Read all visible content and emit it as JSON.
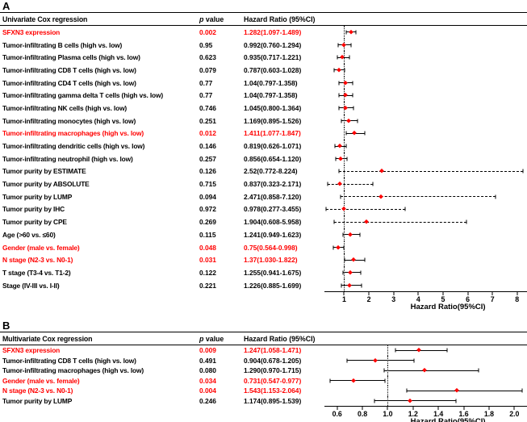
{
  "colors": {
    "significant_text": "#ff0000",
    "normal_text": "#000000",
    "marker": "#ff0000",
    "line": "#000000",
    "background": "#ffffff"
  },
  "chart_data": {
    "type": "forest",
    "panels": [
      {
        "panel_label": "A",
        "header": {
          "model": "Univariate Cox regression",
          "p_italic": "p",
          "p_rest": " value",
          "hr": "Hazard Ratio (95%CI)"
        },
        "axis": {
          "min": 0.2,
          "max": 8.4,
          "ref": 1,
          "dash_threshold": 1.5,
          "title": "Hazard Ratio(95%CI)",
          "ticks": [
            {
              "v": 1,
              "label": "1"
            },
            {
              "v": 2,
              "label": "2"
            },
            {
              "v": 3,
              "label": "3"
            },
            {
              "v": 4,
              "label": "4"
            },
            {
              "v": 5,
              "label": "5"
            },
            {
              "v": 6,
              "label": "6"
            },
            {
              "v": 7,
              "label": "7"
            },
            {
              "v": 8,
              "label": "8"
            }
          ]
        },
        "rows": [
          {
            "label": "SFXN3 expression",
            "p": "0.002",
            "hr_ci": "1.282(1.097-1.489)",
            "hr": 1.282,
            "lo": 1.097,
            "hi": 1.489,
            "significant": true
          },
          {
            "label": "Tumor-infiltrating B cells (high vs. low)",
            "p": "0.95",
            "hr_ci": "0.992(0.760-1.294)",
            "hr": 0.992,
            "lo": 0.76,
            "hi": 1.294,
            "significant": false
          },
          {
            "label": "Tumor-infiltrating Plasma cells (high vs. low)",
            "p": "0.623",
            "hr_ci": "0.935(0.717-1.221)",
            "hr": 0.935,
            "lo": 0.717,
            "hi": 1.221,
            "significant": false
          },
          {
            "label": "Tumor-infiltrating CD8 T cells (high vs. low)",
            "p": "0.079",
            "hr_ci": "0.787(0.603-1.028)",
            "hr": 0.787,
            "lo": 0.603,
            "hi": 1.028,
            "significant": false
          },
          {
            "label": "Tumor-infiltrating CD4 T cells (high vs. low)",
            "p": "0.77",
            "hr_ci": "1.04(0.797-1.358)",
            "hr": 1.04,
            "lo": 0.797,
            "hi": 1.358,
            "significant": false
          },
          {
            "label": "Tumor-infiltrating gamma delta T cells (high vs. low)",
            "p": "0.77",
            "hr_ci": "1.04(0.797-1.358)",
            "hr": 1.04,
            "lo": 0.797,
            "hi": 1.358,
            "significant": false
          },
          {
            "label": "Tumor-infiltrating NK cells (high vs. low)",
            "p": "0.746",
            "hr_ci": "1.045(0.800-1.364)",
            "hr": 1.045,
            "lo": 0.8,
            "hi": 1.364,
            "significant": false
          },
          {
            "label": "Tumor-infiltrating monocytes (high vs. low)",
            "p": "0.251",
            "hr_ci": "1.169(0.895-1.526)",
            "hr": 1.169,
            "lo": 0.895,
            "hi": 1.526,
            "significant": false
          },
          {
            "label": "Tumor-infiltrating macrophages (high vs. low)",
            "p": "0.012",
            "hr_ci": "1.411(1.077-1.847)",
            "hr": 1.411,
            "lo": 1.077,
            "hi": 1.847,
            "significant": true
          },
          {
            "label": "Tumor-infiltrating dendritic cells (high vs. low)",
            "p": "0.146",
            "hr_ci": "0.819(0.626-1.071)",
            "hr": 0.819,
            "lo": 0.626,
            "hi": 1.071,
            "significant": false
          },
          {
            "label": "Tumor-infiltrating neutrophil (high vs. low)",
            "p": "0.257",
            "hr_ci": "0.856(0.654-1.120)",
            "hr": 0.856,
            "lo": 0.654,
            "hi": 1.12,
            "significant": false
          },
          {
            "label": "Tumor purity by ESTIMATE",
            "p": "0.126",
            "hr_ci": "2.52(0.772-8.224)",
            "hr": 2.52,
            "lo": 0.772,
            "hi": 8.224,
            "significant": false
          },
          {
            "label": "Tumor purity by ABSOLUTE",
            "p": "0.715",
            "hr_ci": "0.837(0.323-2.171)",
            "hr": 0.837,
            "lo": 0.323,
            "hi": 2.171,
            "significant": false
          },
          {
            "label": "Tumor purity by LUMP",
            "p": "0.094",
            "hr_ci": "2.471(0.858-7.120)",
            "hr": 2.471,
            "lo": 0.858,
            "hi": 7.12,
            "significant": false
          },
          {
            "label": "Tumor purity by IHC",
            "p": "0.972",
            "hr_ci": "0.978(0.277-3.455)",
            "hr": 0.978,
            "lo": 0.277,
            "hi": 3.455,
            "significant": false
          },
          {
            "label": "Tumor purity by CPE",
            "p": "0.269",
            "hr_ci": "1.904(0.608-5.958)",
            "hr": 1.904,
            "lo": 0.608,
            "hi": 5.958,
            "significant": false
          },
          {
            "label": "Age (>60 vs. ≤60)",
            "p": "0.115",
            "hr_ci": "1.241(0.949-1.623)",
            "hr": 1.241,
            "lo": 0.949,
            "hi": 1.623,
            "significant": false
          },
          {
            "label": "Gender (male vs. female)",
            "p": "0.048",
            "hr_ci": "0.75(0.564-0.998)",
            "hr": 0.75,
            "lo": 0.564,
            "hi": 0.998,
            "significant": true
          },
          {
            "label": "N stage (N2-3 vs. N0-1)",
            "p": "0.031",
            "hr_ci": "1.37(1.030-1.822)",
            "hr": 1.37,
            "lo": 1.03,
            "hi": 1.822,
            "significant": true
          },
          {
            "label": "T stage (T3-4 vs. T1-2)",
            "p": "0.122",
            "hr_ci": "1.255(0.941-1.675)",
            "hr": 1.255,
            "lo": 0.941,
            "hi": 1.675,
            "significant": false
          },
          {
            "label": "Stage (IV-III vs. I-II)",
            "p": "0.221",
            "hr_ci": "1.226(0.885-1.699)",
            "hr": 1.226,
            "lo": 0.885,
            "hi": 1.699,
            "significant": false
          }
        ]
      },
      {
        "panel_label": "B",
        "header": {
          "model": "Multivariate Cox regression",
          "p_italic": "p",
          "p_rest": " value",
          "hr": "Hazard Ratio (95%CI)"
        },
        "axis": {
          "min": 0.5,
          "max": 2.1,
          "ref": 1,
          "dash_threshold": 99,
          "title": "Hazard Ratio(95%CI)",
          "ticks": [
            {
              "v": 0.6,
              "label": "0.6"
            },
            {
              "v": 0.8,
              "label": "0.8"
            },
            {
              "v": 1.0,
              "label": "1.0"
            },
            {
              "v": 1.2,
              "label": "1.2"
            },
            {
              "v": 1.4,
              "label": "1.4"
            },
            {
              "v": 1.6,
              "label": "1.6"
            },
            {
              "v": 1.8,
              "label": "1.8"
            },
            {
              "v": 2.0,
              "label": "2.0"
            }
          ]
        },
        "rows": [
          {
            "label": "SFXN3 expression",
            "p": "0.009",
            "hr_ci": "1.247(1.058-1.471)",
            "hr": 1.247,
            "lo": 1.058,
            "hi": 1.471,
            "significant": true
          },
          {
            "label": "Tumor-infiltrating CD8 T cells (high vs. low)",
            "p": "0.491",
            "hr_ci": "0.904(0.678-1.205)",
            "hr": 0.904,
            "lo": 0.678,
            "hi": 1.205,
            "significant": false
          },
          {
            "label": "Tumor-infiltrating macrophages (high vs. low)",
            "p": "0.080",
            "hr_ci": "1.290(0.970-1.715)",
            "hr": 1.29,
            "lo": 0.97,
            "hi": 1.715,
            "significant": false
          },
          {
            "label": "Gender (male vs. female)",
            "p": "0.034",
            "hr_ci": "0.731(0.547-0.977)",
            "hr": 0.731,
            "lo": 0.547,
            "hi": 0.977,
            "significant": true
          },
          {
            "label": "N stage (N2-3 vs. N0-1)",
            "p": "0.004",
            "hr_ci": "1.543(1.153-2.064)",
            "hr": 1.543,
            "lo": 1.153,
            "hi": 2.064,
            "significant": true
          },
          {
            "label": "Tumor purity by LUMP",
            "p": "0.246",
            "hr_ci": "1.174(0.895-1.539)",
            "hr": 1.174,
            "lo": 0.895,
            "hi": 1.539,
            "significant": false
          }
        ]
      }
    ]
  }
}
